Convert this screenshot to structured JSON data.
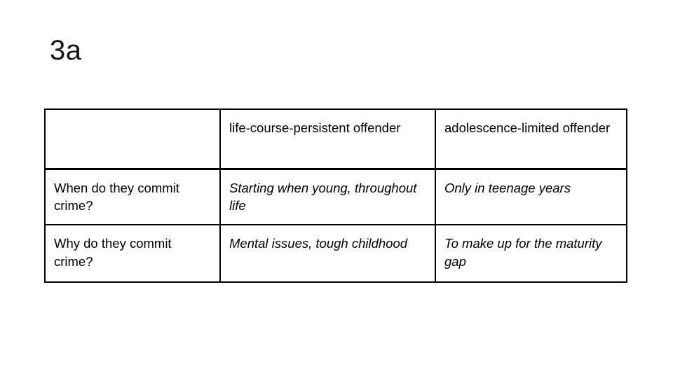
{
  "slide": {
    "title": "3a"
  },
  "table": {
    "columns": [
      "",
      "life-course-persistent offender",
      "adolescence-limited offender"
    ],
    "rows": [
      {
        "question": "When do they commit crime?",
        "answers": [
          "Starting when young, throughout life",
          "Only in teenage years"
        ]
      },
      {
        "question": "Why do they commit crime?",
        "answers": [
          "Mental issues, tough childhood",
          "To make up for the maturity gap"
        ]
      }
    ]
  }
}
